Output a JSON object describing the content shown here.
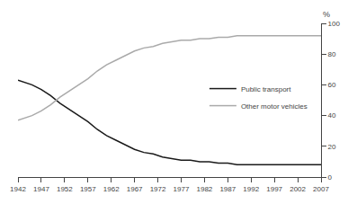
{
  "chart_data": {
    "type": "line",
    "x": [
      1942,
      1945,
      1947,
      1949,
      1951,
      1953,
      1955,
      1957,
      1959,
      1961,
      1963,
      1965,
      1967,
      1969,
      1971,
      1973,
      1975,
      1977,
      1979,
      1981,
      1983,
      1985,
      1987,
      1989,
      1991,
      1993,
      1995,
      1997,
      1999,
      2001,
      2003,
      2005,
      2007
    ],
    "series": [
      {
        "name": "Public transport",
        "color": "#1a1a1a",
        "values": [
          63,
          60,
          57,
          53,
          48,
          44,
          40,
          36,
          31,
          27,
          24,
          21,
          18,
          16,
          15,
          13,
          12,
          11,
          11,
          10,
          10,
          9,
          9,
          8,
          8,
          8,
          8,
          8,
          8,
          8,
          8,
          8,
          8
        ]
      },
      {
        "name": "Other motor vehicles",
        "color": "#aaaaaa",
        "values": [
          37,
          40,
          43,
          47,
          52,
          56,
          60,
          64,
          69,
          73,
          76,
          79,
          82,
          84,
          85,
          87,
          88,
          89,
          89,
          90,
          90,
          91,
          91,
          92,
          92,
          92,
          92,
          92,
          92,
          92,
          92,
          92,
          92
        ]
      }
    ],
    "ylabel": "%",
    "xlim": [
      1942,
      2007
    ],
    "ylim": [
      0,
      100
    ],
    "xticks": [
      1942,
      1947,
      1952,
      1957,
      1962,
      1967,
      1972,
      1977,
      1982,
      1987,
      1992,
      1997,
      2002,
      2007
    ],
    "yticks": [
      0,
      20,
      40,
      60,
      80,
      100
    ],
    "grid": false,
    "legend": "right"
  }
}
